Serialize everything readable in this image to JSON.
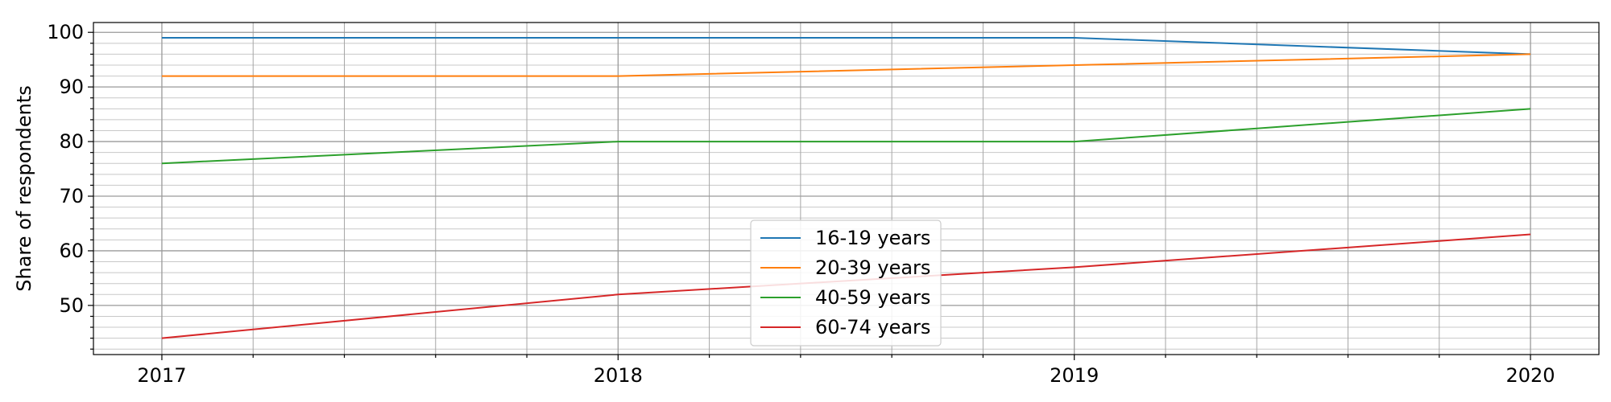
{
  "chart_data": {
    "type": "line",
    "title": "",
    "xlabel": "",
    "ylabel": "Share of respondents",
    "x": [
      "2017",
      "2018",
      "2019",
      "2020"
    ],
    "x_values": [
      2017,
      2018,
      2019,
      2020
    ],
    "xlim": [
      2016.85,
      2020.15
    ],
    "ylim": [
      41,
      101.8
    ],
    "y_ticks": [
      50,
      60,
      70,
      80,
      90,
      100
    ],
    "y_minor_step": 2,
    "x_minor_step": 0.2,
    "grid": true,
    "legend_position": "bottom-center",
    "series": [
      {
        "name": "16-19 years",
        "color": "#1f77b4",
        "values": [
          99,
          99,
          99,
          96
        ]
      },
      {
        "name": "20-39 years",
        "color": "#ff7f0e",
        "values": [
          92,
          92,
          94,
          96
        ]
      },
      {
        "name": "40-59 years",
        "color": "#2ca02c",
        "values": [
          76,
          80,
          80,
          86
        ]
      },
      {
        "name": "60-74 years",
        "color": "#d62728",
        "values": [
          44,
          52,
          57,
          63
        ]
      }
    ]
  }
}
